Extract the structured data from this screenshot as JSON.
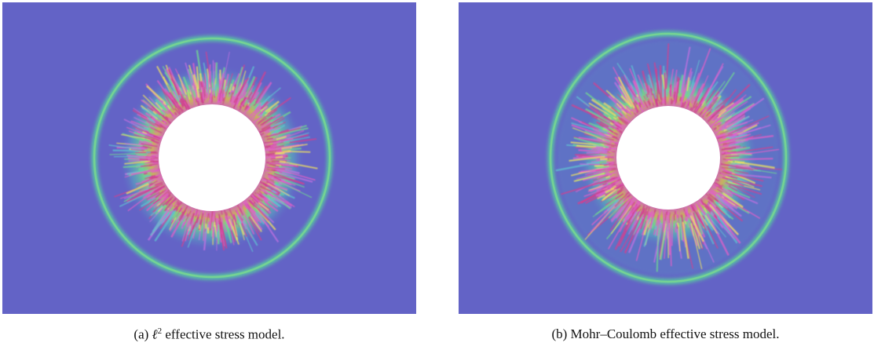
{
  "figures": [
    {
      "label": "(a)",
      "symbol": "ℓ",
      "superscript": "2",
      "text": "effective stress model."
    },
    {
      "label": "(b)",
      "text": "Mohr–Coulomb effective stress model."
    }
  ]
}
